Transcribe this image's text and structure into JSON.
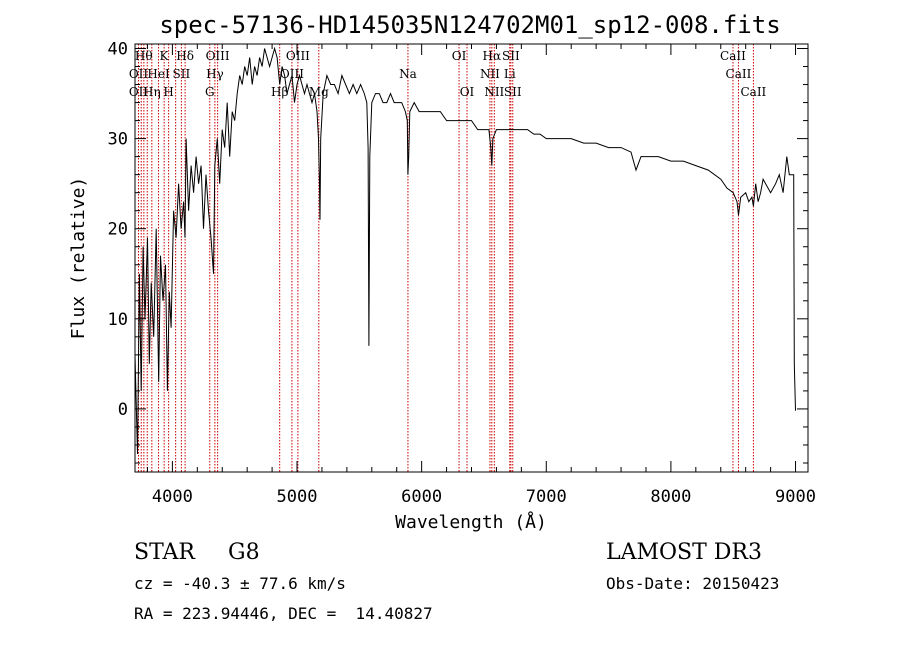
{
  "chart_data": {
    "type": "line",
    "title": "spec-57136-HD145035N124702M01_sp12-008.fits",
    "xlabel": "Wavelength (Å)",
    "ylabel": "Flux (relative)",
    "xlim": [
      3700,
      9100
    ],
    "ylim": [
      -7,
      40.5
    ],
    "xticks": [
      4000,
      5000,
      6000,
      7000,
      8000,
      9000
    ],
    "yticks": [
      0,
      10,
      20,
      30,
      40
    ],
    "x_minor_step": 200,
    "y_minor_step": 2,
    "grid": false,
    "series": [
      {
        "points": [
          [
            3700,
            6
          ],
          [
            3720,
            -5
          ],
          [
            3735,
            15
          ],
          [
            3750,
            2
          ],
          [
            3765,
            18
          ],
          [
            3780,
            10
          ],
          [
            3800,
            19
          ],
          [
            3815,
            5
          ],
          [
            3830,
            14
          ],
          [
            3850,
            8
          ],
          [
            3870,
            20
          ],
          [
            3890,
            3
          ],
          [
            3905,
            17
          ],
          [
            3925,
            12
          ],
          [
            3945,
            16
          ],
          [
            3960,
            2
          ],
          [
            3975,
            13
          ],
          [
            3990,
            9
          ],
          [
            4010,
            22
          ],
          [
            4030,
            19
          ],
          [
            4050,
            25
          ],
          [
            4070,
            20
          ],
          [
            4090,
            23
          ],
          [
            4101,
            19
          ],
          [
            4110,
            30
          ],
          [
            4130,
            22
          ],
          [
            4150,
            27
          ],
          [
            4170,
            24
          ],
          [
            4190,
            28
          ],
          [
            4210,
            25
          ],
          [
            4230,
            27
          ],
          [
            4250,
            20
          ],
          [
            4270,
            26
          ],
          [
            4290,
            22
          ],
          [
            4310,
            19
          ],
          [
            4330,
            15
          ],
          [
            4340,
            27
          ],
          [
            4360,
            30
          ],
          [
            4380,
            25
          ],
          [
            4400,
            31
          ],
          [
            4420,
            29
          ],
          [
            4440,
            34
          ],
          [
            4460,
            28
          ],
          [
            4480,
            33
          ],
          [
            4500,
            32
          ],
          [
            4520,
            35
          ],
          [
            4540,
            37
          ],
          [
            4560,
            36
          ],
          [
            4580,
            38
          ],
          [
            4600,
            37
          ],
          [
            4620,
            39
          ],
          [
            4640,
            36
          ],
          [
            4660,
            38
          ],
          [
            4680,
            37
          ],
          [
            4700,
            39
          ],
          [
            4720,
            38
          ],
          [
            4740,
            40
          ],
          [
            4760,
            39
          ],
          [
            4780,
            38
          ],
          [
            4800,
            39
          ],
          [
            4820,
            40
          ],
          [
            4840,
            39
          ],
          [
            4861,
            36
          ],
          [
            4880,
            38
          ],
          [
            4900,
            37
          ],
          [
            4920,
            35
          ],
          [
            4940,
            36
          ],
          [
            4960,
            37
          ],
          [
            4980,
            34
          ],
          [
            5000,
            36
          ],
          [
            5020,
            37
          ],
          [
            5040,
            36
          ],
          [
            5060,
            35
          ],
          [
            5080,
            36
          ],
          [
            5100,
            35
          ],
          [
            5120,
            34
          ],
          [
            5140,
            35
          ],
          [
            5160,
            33
          ],
          [
            5172,
            30
          ],
          [
            5180,
            25
          ],
          [
            5184,
            21
          ],
          [
            5190,
            30
          ],
          [
            5210,
            35
          ],
          [
            5240,
            37
          ],
          [
            5270,
            36
          ],
          [
            5300,
            36
          ],
          [
            5330,
            35
          ],
          [
            5360,
            37
          ],
          [
            5390,
            36
          ],
          [
            5420,
            35
          ],
          [
            5450,
            36
          ],
          [
            5480,
            35
          ],
          [
            5510,
            36
          ],
          [
            5540,
            35
          ],
          [
            5560,
            34
          ],
          [
            5570,
            29
          ],
          [
            5577,
            7
          ],
          [
            5584,
            28
          ],
          [
            5600,
            34
          ],
          [
            5630,
            35
          ],
          [
            5660,
            35
          ],
          [
            5690,
            34
          ],
          [
            5720,
            34
          ],
          [
            5750,
            35
          ],
          [
            5780,
            34
          ],
          [
            5810,
            34
          ],
          [
            5840,
            34
          ],
          [
            5870,
            33
          ],
          [
            5885,
            32
          ],
          [
            5890,
            26
          ],
          [
            5896,
            28
          ],
          [
            5905,
            33
          ],
          [
            5940,
            34
          ],
          [
            5980,
            33
          ],
          [
            6020,
            33
          ],
          [
            6060,
            33
          ],
          [
            6100,
            33
          ],
          [
            6150,
            33
          ],
          [
            6200,
            32
          ],
          [
            6250,
            32
          ],
          [
            6300,
            32
          ],
          [
            6350,
            32
          ],
          [
            6400,
            32
          ],
          [
            6450,
            31
          ],
          [
            6500,
            31
          ],
          [
            6540,
            31
          ],
          [
            6555,
            29
          ],
          [
            6563,
            27
          ],
          [
            6572,
            30
          ],
          [
            6600,
            31
          ],
          [
            6650,
            31
          ],
          [
            6700,
            31
          ],
          [
            6750,
            31
          ],
          [
            6800,
            31
          ],
          [
            6850,
            31
          ],
          [
            6900,
            30.5
          ],
          [
            6950,
            30.5
          ],
          [
            7000,
            30
          ],
          [
            7100,
            30
          ],
          [
            7200,
            30
          ],
          [
            7300,
            29.5
          ],
          [
            7400,
            29.5
          ],
          [
            7500,
            29
          ],
          [
            7600,
            29
          ],
          [
            7680,
            28.5
          ],
          [
            7720,
            26.5
          ],
          [
            7760,
            28
          ],
          [
            7800,
            28
          ],
          [
            7900,
            28
          ],
          [
            8000,
            27.5
          ],
          [
            8100,
            27.5
          ],
          [
            8200,
            27
          ],
          [
            8300,
            26.5
          ],
          [
            8400,
            25.5
          ],
          [
            8450,
            24.5
          ],
          [
            8500,
            24
          ],
          [
            8530,
            23
          ],
          [
            8542,
            21.5
          ],
          [
            8560,
            23.5
          ],
          [
            8600,
            24
          ],
          [
            8625,
            23
          ],
          [
            8650,
            23.5
          ],
          [
            8662,
            22.5
          ],
          [
            8680,
            25
          ],
          [
            8700,
            23
          ],
          [
            8720,
            24
          ],
          [
            8740,
            25.5
          ],
          [
            8760,
            25
          ],
          [
            8800,
            24
          ],
          [
            8840,
            25
          ],
          [
            8870,
            26
          ],
          [
            8900,
            24
          ],
          [
            8930,
            28
          ],
          [
            8950,
            26
          ],
          [
            8985,
            26
          ],
          [
            8990,
            5
          ],
          [
            9000,
            -0.2
          ]
        ]
      }
    ],
    "line_markers": {
      "wavelengths": [
        3728,
        3750,
        3771,
        3798,
        3835,
        3889,
        3934,
        3970,
        4026,
        4072,
        4102,
        4300,
        4341,
        4363,
        4861,
        4959,
        5007,
        5175,
        5890,
        6300,
        6364,
        6548,
        6563,
        6583,
        6707,
        6716,
        6731,
        8498,
        8542,
        8662
      ],
      "labels": [
        {
          "text": "Hθ",
          "x": 3770,
          "row": 1
        },
        {
          "text": "K",
          "x": 3933,
          "row": 1
        },
        {
          "text": "Hδ",
          "x": 4102,
          "row": 1
        },
        {
          "text": "OIII",
          "x": 4363,
          "row": 1
        },
        {
          "text": "OIII",
          "x": 5007,
          "row": 1
        },
        {
          "text": "OI",
          "x": 6300,
          "row": 1
        },
        {
          "text": "Hα",
          "x": 6563,
          "row": 1
        },
        {
          "text": "SII",
          "x": 6716,
          "row": 1
        },
        {
          "text": "CaII",
          "x": 8498,
          "row": 1
        },
        {
          "text": "OII",
          "x": 3728,
          "row": 2
        },
        {
          "text": "HeI",
          "x": 3889,
          "row": 2
        },
        {
          "text": "SII",
          "x": 4072,
          "row": 2
        },
        {
          "text": "Hγ",
          "x": 4341,
          "row": 2
        },
        {
          "text": "OIII",
          "x": 4959,
          "row": 2
        },
        {
          "text": "Na",
          "x": 5890,
          "row": 2
        },
        {
          "text": "NII",
          "x": 6548,
          "row": 2
        },
        {
          "text": "Li",
          "x": 6707,
          "row": 2
        },
        {
          "text": "CaII",
          "x": 8542,
          "row": 2
        },
        {
          "text": "OII",
          "x": 3728,
          "row": 3
        },
        {
          "text": "Hη",
          "x": 3835,
          "row": 3
        },
        {
          "text": "H",
          "x": 3970,
          "row": 3
        },
        {
          "text": "G",
          "x": 4300,
          "row": 3
        },
        {
          "text": "Hβ",
          "x": 4861,
          "row": 3
        },
        {
          "text": "Mg",
          "x": 5175,
          "row": 3
        },
        {
          "text": "OI",
          "x": 6364,
          "row": 3
        },
        {
          "text": "NII",
          "x": 6583,
          "row": 3
        },
        {
          "text": "SII",
          "x": 6731,
          "row": 3
        },
        {
          "text": "CaII",
          "x": 8662,
          "row": 3
        }
      ],
      "color": "#cc0000"
    }
  },
  "info": {
    "class": "STAR",
    "subclass": "G8",
    "survey": "LAMOST DR3",
    "cz": "cz = -40.3 ± 77.6 km/s",
    "obs_date": "Obs-Date: 20150423",
    "coords": "RA = 223.94446, DEC =  14.40827"
  }
}
